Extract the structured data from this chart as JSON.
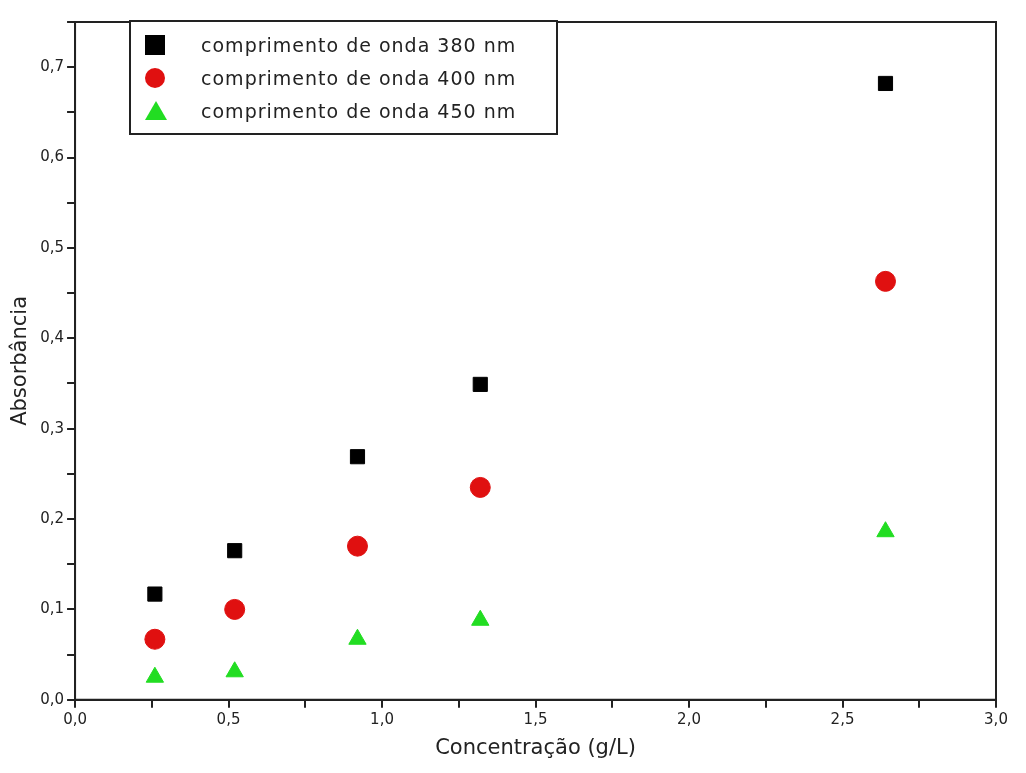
{
  "chart_data": {
    "type": "scatter",
    "xlabel": "Concentração (g/L)",
    "ylabel": "Absorbância",
    "xlim": [
      0,
      3
    ],
    "ylim": [
      0,
      0.75
    ],
    "xticks": [
      {
        "value": 0,
        "label": "0,0"
      },
      {
        "value": 0.25,
        "label": null
      },
      {
        "value": 0.5,
        "label": "0,5"
      },
      {
        "value": 0.75,
        "label": null
      },
      {
        "value": 1,
        "label": "1,0"
      },
      {
        "value": 1.25,
        "label": null
      },
      {
        "value": 1.5,
        "label": "1,5"
      },
      {
        "value": 1.75,
        "label": null
      },
      {
        "value": 2,
        "label": "2,0"
      },
      {
        "value": 2.25,
        "label": null
      },
      {
        "value": 2.5,
        "label": "2,5"
      },
      {
        "value": 2.75,
        "label": null
      },
      {
        "value": 3,
        "label": "3,0"
      }
    ],
    "yticks": [
      {
        "value": 0,
        "label": "0,0"
      },
      {
        "value": 0.05,
        "label": null
      },
      {
        "value": 0.1,
        "label": "0,1"
      },
      {
        "value": 0.15,
        "label": null
      },
      {
        "value": 0.2,
        "label": "0,2"
      },
      {
        "value": 0.25,
        "label": null
      },
      {
        "value": 0.3,
        "label": "0,3"
      },
      {
        "value": 0.35,
        "label": null
      },
      {
        "value": 0.4,
        "label": "0,4"
      },
      {
        "value": 0.45,
        "label": null
      },
      {
        "value": 0.5,
        "label": "0,5"
      },
      {
        "value": 0.55,
        "label": null
      },
      {
        "value": 0.6,
        "label": "0,6"
      },
      {
        "value": 0.65,
        "label": null
      },
      {
        "value": 0.7,
        "label": "0,7"
      },
      {
        "value": 0.75,
        "label": null
      }
    ],
    "x": [
      0.26,
      0.52,
      0.92,
      1.32,
      2.64
    ],
    "grid": false,
    "legend": "top left",
    "series": [
      {
        "name": "comprimento de onda 380 nm",
        "color": "#000000",
        "marker": "square",
        "values": [
          0.117,
          0.165,
          0.269,
          0.349,
          0.682
        ]
      },
      {
        "name": "comprimento de onda 400 nm",
        "color": "#e01010",
        "marker": "circle",
        "values": [
          0.067,
          0.1,
          0.17,
          0.235,
          0.463
        ]
      },
      {
        "name": "comprimento de onda 450 nm",
        "color": "#22dd22",
        "marker": "triangle",
        "values": [
          0.025,
          0.031,
          0.067,
          0.088,
          0.186
        ]
      }
    ]
  }
}
